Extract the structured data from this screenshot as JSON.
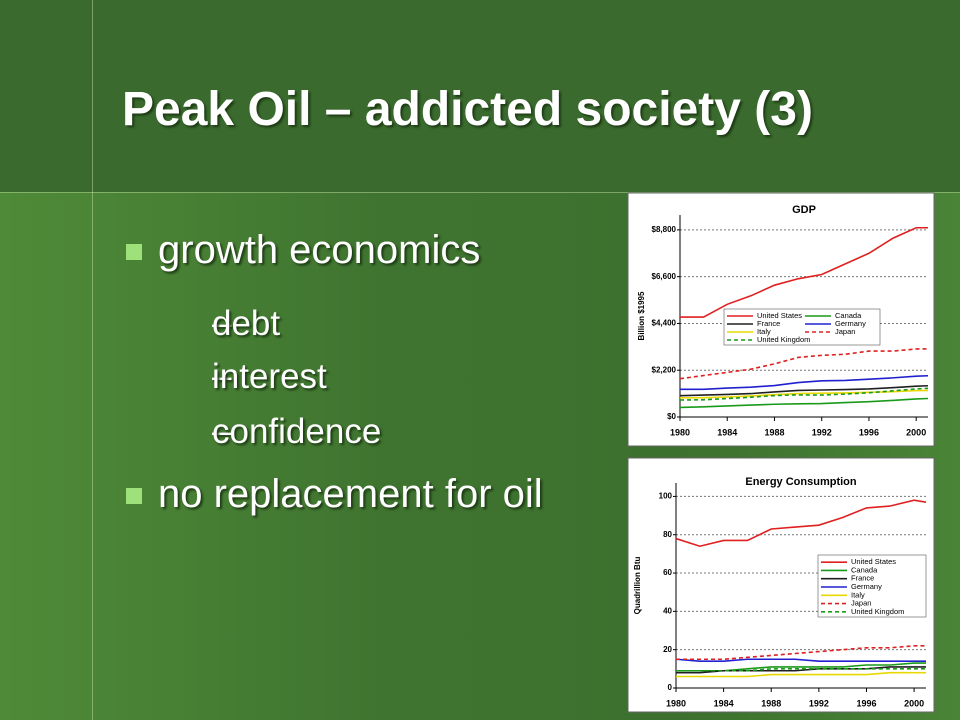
{
  "slide": {
    "title": "Peak Oil – addicted society (3)",
    "bullets": [
      {
        "text": "growth economics",
        "sub": [
          "debt",
          "interest",
          "confidence"
        ]
      },
      {
        "text": "no replacement for oil",
        "sub": []
      }
    ]
  },
  "chart_data": [
    {
      "type": "line",
      "title": "GDP",
      "y_label": "Billion $1995",
      "x": [
        1980,
        1982,
        1984,
        1986,
        1988,
        1990,
        1992,
        1994,
        1996,
        1998,
        2000,
        2001
      ],
      "xlim": [
        1980,
        2001
      ],
      "xticks": [
        1980,
        1984,
        1988,
        1992,
        1996,
        2000
      ],
      "ylim": [
        0,
        9500
      ],
      "yticks": [
        {
          "value": 0,
          "label": "$0"
        },
        {
          "value": 2200,
          "label": "$2,200"
        },
        {
          "value": 4400,
          "label": "$4,400"
        },
        {
          "value": 6600,
          "label": "$6,600"
        },
        {
          "value": 8800,
          "label": "$8,800"
        }
      ],
      "grid": true,
      "series": [
        {
          "name": "United States",
          "color": "#e02020",
          "style": "solid",
          "values": [
            4700,
            4700,
            5300,
            5700,
            6200,
            6500,
            6700,
            7200,
            7700,
            8400,
            8900,
            8900
          ]
        },
        {
          "name": "Canada",
          "color": "#1a9a1a",
          "style": "solid",
          "values": [
            450,
            480,
            520,
            560,
            600,
            620,
            630,
            680,
            720,
            780,
            850,
            870
          ]
        },
        {
          "name": "France",
          "color": "#202020",
          "style": "solid",
          "values": [
            1000,
            1030,
            1060,
            1100,
            1180,
            1250,
            1270,
            1290,
            1320,
            1380,
            1450,
            1470
          ]
        },
        {
          "name": "Germany",
          "color": "#2020d0",
          "style": "solid",
          "values": [
            1300,
            1300,
            1360,
            1400,
            1480,
            1620,
            1700,
            1720,
            1780,
            1840,
            1920,
            1940
          ]
        },
        {
          "name": "Italy",
          "color": "#e8d800",
          "style": "solid",
          "values": [
            900,
            910,
            940,
            990,
            1050,
            1100,
            1120,
            1130,
            1160,
            1190,
            1240,
            1250
          ]
        },
        {
          "name": "Japan",
          "color": "#e02020",
          "style": "dashed",
          "values": [
            1800,
            1950,
            2100,
            2250,
            2500,
            2800,
            2900,
            2950,
            3100,
            3100,
            3200,
            3200
          ]
        },
        {
          "name": "United Kingdom",
          "color": "#1a9a1a",
          "style": "dashed",
          "values": [
            800,
            810,
            870,
            930,
            1010,
            1040,
            1030,
            1080,
            1140,
            1230,
            1320,
            1350
          ]
        }
      ]
    },
    {
      "type": "line",
      "title": "Energy Consumption",
      "y_label": "Quadrillion Btu",
      "x": [
        1980,
        1982,
        1984,
        1986,
        1988,
        1990,
        1992,
        1994,
        1996,
        1998,
        2000,
        2001
      ],
      "xlim": [
        1980,
        2001
      ],
      "xticks": [
        1980,
        1984,
        1988,
        1992,
        1996,
        2000
      ],
      "ylim": [
        0,
        107
      ],
      "yticks": [
        0,
        20,
        40,
        60,
        80,
        100
      ],
      "grid": true,
      "series": [
        {
          "name": "United States",
          "color": "#e02020",
          "style": "solid",
          "values": [
            78,
            74,
            77,
            77,
            83,
            84,
            85,
            89,
            94,
            95,
            98,
            97
          ]
        },
        {
          "name": "Canada",
          "color": "#1a9a1a",
          "style": "solid",
          "values": [
            9,
            9,
            9,
            10,
            11,
            11,
            11,
            11,
            12,
            12,
            13,
            13
          ]
        },
        {
          "name": "France",
          "color": "#202020",
          "style": "solid",
          "values": [
            8,
            8,
            9,
            9,
            9,
            9,
            10,
            10,
            10,
            11,
            11,
            11
          ]
        },
        {
          "name": "Germany",
          "color": "#2020d0",
          "style": "solid",
          "values": [
            15,
            14,
            14,
            15,
            15,
            15,
            14,
            14,
            14,
            14,
            14,
            14
          ]
        },
        {
          "name": "Italy",
          "color": "#e8d800",
          "style": "solid",
          "values": [
            6,
            6,
            6,
            6,
            7,
            7,
            7,
            7,
            7,
            8,
            8,
            8
          ]
        },
        {
          "name": "Japan",
          "color": "#e02020",
          "style": "dashed",
          "values": [
            15,
            15,
            15,
            16,
            17,
            18,
            19,
            20,
            21,
            21,
            22,
            22
          ]
        },
        {
          "name": "United Kingdom",
          "color": "#1a9a1a",
          "style": "dashed",
          "values": [
            9,
            9,
            9,
            9,
            10,
            10,
            10,
            10,
            10,
            10,
            10,
            10
          ]
        }
      ]
    }
  ]
}
